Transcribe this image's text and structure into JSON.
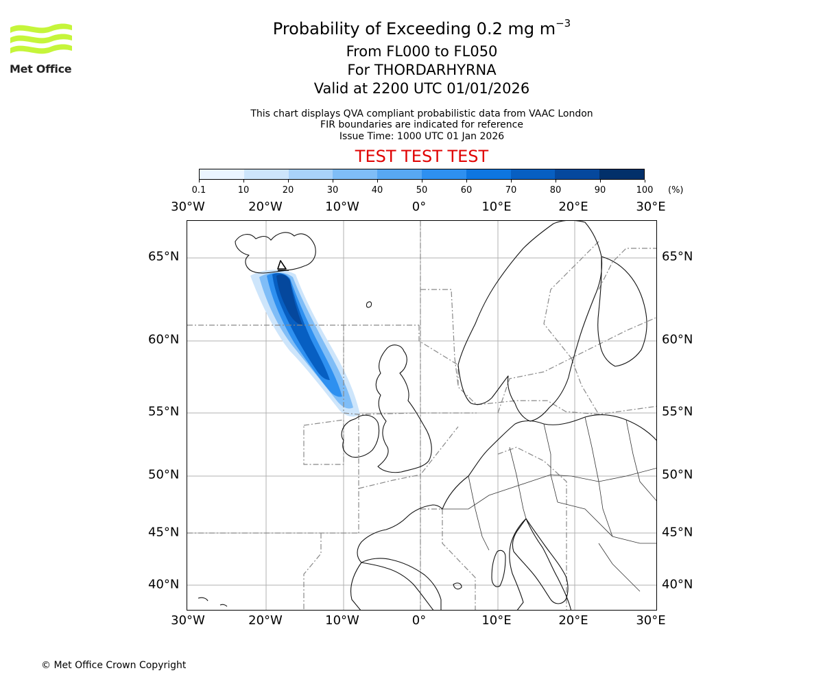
{
  "header": {
    "title_main": "Probability of Exceeding 0.2 mg m",
    "title_sup": "−3",
    "flight_levels": "From FL000 to FL050",
    "volcano": "For THORDARHYRNA",
    "valid_time": "Valid at 2200 UTC 01/01/2026",
    "info_line1": "This chart displays QVA compliant probabilistic data from VAAC London",
    "info_line2": "FIR boundaries are indicated for reference",
    "info_line3": "Issue Time: 1000 UTC 01 Jan 2026",
    "banner": "TEST TEST TEST"
  },
  "logo": {
    "text": "Met Office",
    "color": "#c5f53a"
  },
  "colorbar": {
    "ticks": [
      "0.1",
      "10",
      "20",
      "30",
      "40",
      "50",
      "60",
      "70",
      "80",
      "90",
      "100"
    ],
    "unit": "(%)",
    "colors": [
      "#ebf5ff",
      "#cde5fb",
      "#a9d2fa",
      "#7fbdf7",
      "#58a8f3",
      "#2e90f0",
      "#0e76e0",
      "#075fc2",
      "#05489d",
      "#02306a"
    ]
  },
  "axes": {
    "lon_labels": [
      "30°W",
      "20°W",
      "10°W",
      "0°",
      "10°E",
      "20°E",
      "30°E"
    ],
    "lat_labels": [
      "65°N",
      "60°N",
      "55°N",
      "50°N",
      "45°N",
      "40°N"
    ]
  },
  "footer": {
    "copyright": "© Met Office Crown Copyright"
  }
}
